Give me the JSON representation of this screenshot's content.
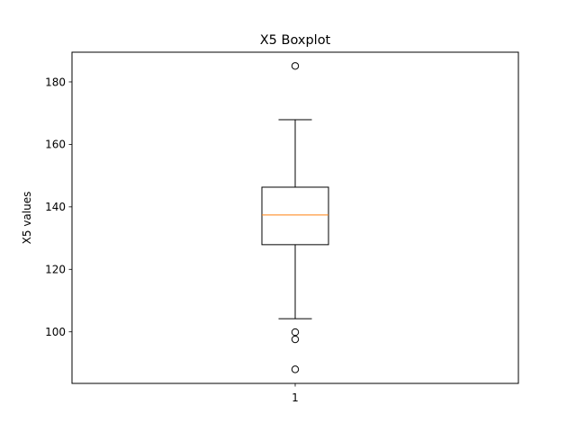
{
  "chart_data": {
    "type": "boxplot",
    "title": "X5 Boxplot",
    "xlabel": "",
    "ylabel": "X5 values",
    "categories": [
      "1"
    ],
    "ylim": [
      83.5,
      189.5
    ],
    "yticks": [
      100,
      120,
      140,
      160,
      180
    ],
    "grid": false,
    "boxes": [
      {
        "category": "1",
        "whisker_low": 104.2,
        "q1": 127.9,
        "median": 137.4,
        "q3": 146.3,
        "whisker_high": 167.9,
        "outliers": [
          185.1,
          99.9,
          97.6,
          88.0
        ]
      }
    ],
    "colors": {
      "box": "#000000",
      "median": "#ff7f0e",
      "whisker": "#000000",
      "outlier_edge": "#000000"
    }
  }
}
